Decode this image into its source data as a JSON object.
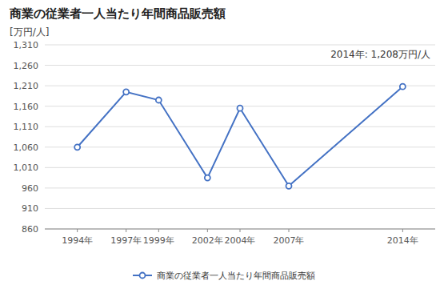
{
  "chart_data": {
    "type": "line",
    "title": "商業の従業者一人当たり年間商品販売額",
    "y_label": "[万円/人]",
    "annotation": "2014年: 1,208万円/人",
    "x": [
      1994,
      1997,
      1999,
      2002,
      2004,
      2007,
      2014
    ],
    "xlim": [
      1992,
      2016
    ],
    "xticks": [
      {
        "value": 1994,
        "label": "1994年"
      },
      {
        "value": 1997,
        "label": "1997年"
      },
      {
        "value": 1999,
        "label": "1999年"
      },
      {
        "value": 2002,
        "label": "2002年"
      },
      {
        "value": 2004,
        "label": "2004年"
      },
      {
        "value": 2007,
        "label": "2007年"
      },
      {
        "value": 2014,
        "label": "2014年"
      }
    ],
    "ylim": [
      860,
      1310
    ],
    "yticks": [
      860,
      910,
      960,
      {
        "value": 1010,
        "label": "1,010"
      },
      {
        "value": 1060,
        "label": "1,060"
      },
      {
        "value": 1110,
        "label": "1,110"
      },
      {
        "value": 1160,
        "label": "1,160"
      },
      {
        "value": 1210,
        "label": "1,210"
      },
      {
        "value": 1260,
        "label": "1,260"
      },
      {
        "value": 1310,
        "label": "1,310"
      }
    ],
    "series": [
      {
        "name": "商業の従業者一人当たり年間商品販売額",
        "color": "#4472C4",
        "marker": "circle",
        "values": [
          1060,
          1195,
          1175,
          985,
          1155,
          965,
          1208
        ]
      }
    ],
    "grid": true,
    "legend": "bottom"
  }
}
